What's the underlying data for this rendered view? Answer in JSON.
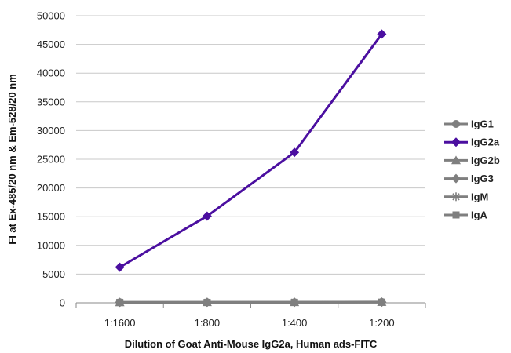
{
  "chart_data": {
    "type": "line",
    "categories": [
      "1:1600",
      "1:800",
      "1:400",
      "1:200"
    ],
    "ylim": [
      0,
      50000
    ],
    "yticks": [
      0,
      5000,
      10000,
      15000,
      20000,
      25000,
      30000,
      35000,
      40000,
      45000,
      50000
    ],
    "xlabel": "Dilution of Goat Anti-Mouse IgG2a, Human ads-FITC",
    "ylabel": "FI at Ex-485/20 nm & Em-528/20 nm",
    "grid": "horizontal",
    "legend_position": "right",
    "series": [
      {
        "name": "IgG1",
        "values": [
          100,
          100,
          110,
          150
        ],
        "color": "#7f7f7f",
        "marker": "circle"
      },
      {
        "name": "IgG2a",
        "values": [
          6200,
          15100,
          26200,
          46800
        ],
        "color": "#4b0fa0",
        "marker": "diamond"
      },
      {
        "name": "IgG2b",
        "values": [
          80,
          90,
          100,
          130
        ],
        "color": "#7f7f7f",
        "marker": "triangle"
      },
      {
        "name": "IgG3",
        "values": [
          90,
          95,
          100,
          120
        ],
        "color": "#7f7f7f",
        "marker": "diamond"
      },
      {
        "name": "IgM",
        "values": [
          70,
          80,
          90,
          110
        ],
        "color": "#7f7f7f",
        "marker": "star"
      },
      {
        "name": "IgA",
        "values": [
          60,
          70,
          80,
          100
        ],
        "color": "#7f7f7f",
        "marker": "square"
      }
    ]
  }
}
